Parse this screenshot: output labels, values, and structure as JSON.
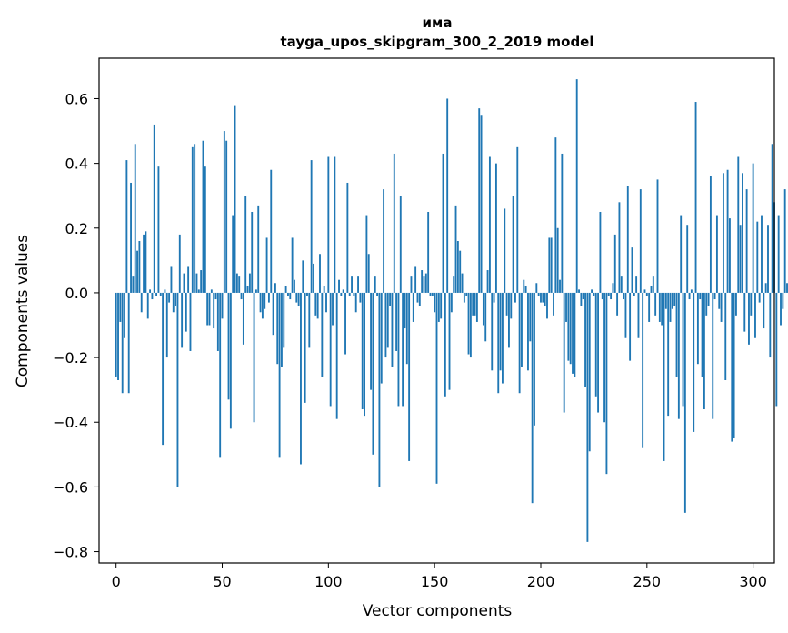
{
  "chart_data": {
    "type": "bar",
    "title_line1": "има",
    "title_line2": "tayga_upos_skipgram_300_2_2019 model",
    "xlabel": "Vector components",
    "ylabel": "Components values",
    "xlim": [
      -8,
      310
    ],
    "ylim": [
      -0.835,
      0.725
    ],
    "xticks": [
      0,
      50,
      100,
      150,
      200,
      250,
      300
    ],
    "xtick_labels": [
      "0",
      "50",
      "100",
      "150",
      "200",
      "250",
      "300"
    ],
    "yticks": [
      -0.8,
      -0.6,
      -0.4,
      -0.2,
      0.0,
      0.2,
      0.4,
      0.6
    ],
    "ytick_labels": [
      "−0.8",
      "−0.6",
      "−0.4",
      "−0.2",
      "0.0",
      "0.2",
      "0.4",
      "0.6"
    ],
    "bar_color": "#1f77b4",
    "values": [
      -0.26,
      -0.27,
      -0.09,
      -0.31,
      -0.14,
      0.41,
      -0.31,
      0.34,
      0.05,
      0.46,
      0.13,
      0.16,
      -0.06,
      0.18,
      0.19,
      -0.08,
      0.01,
      -0.02,
      0.52,
      -0.01,
      0.39,
      -0.01,
      -0.47,
      0.01,
      -0.2,
      -0.03,
      0.08,
      -0.06,
      -0.04,
      -0.6,
      0.18,
      -0.17,
      0.06,
      -0.12,
      0.08,
      -0.18,
      0.45,
      0.46,
      0.06,
      0.01,
      0.07,
      0.47,
      0.39,
      -0.1,
      -0.1,
      0.01,
      -0.11,
      -0.02,
      -0.18,
      -0.51,
      -0.08,
      0.5,
      0.47,
      -0.33,
      -0.42,
      0.24,
      0.58,
      0.06,
      0.05,
      -0.02,
      -0.16,
      0.3,
      0.02,
      0.06,
      0.25,
      -0.4,
      0.01,
      0.27,
      -0.06,
      -0.08,
      -0.05,
      0.17,
      -0.03,
      0.38,
      -0.13,
      0.03,
      -0.22,
      -0.51,
      -0.23,
      -0.17,
      0.02,
      -0.01,
      -0.02,
      0.17,
      0.04,
      -0.03,
      -0.04,
      -0.53,
      0.1,
      -0.34,
      -0.01,
      -0.17,
      0.41,
      0.09,
      -0.07,
      -0.08,
      0.12,
      -0.26,
      0.02,
      -0.06,
      0.42,
      -0.35,
      -0.1,
      0.42,
      -0.39,
      0.04,
      -0.01,
      0.01,
      -0.19,
      0.34,
      -0.01,
      0.05,
      -0.01,
      -0.06,
      0.05,
      -0.03,
      -0.36,
      -0.38,
      0.24,
      0.12,
      -0.3,
      -0.5,
      0.05,
      -0.01,
      -0.6,
      -0.28,
      0.32,
      -0.2,
      -0.17,
      -0.04,
      -0.23,
      0.43,
      -0.18,
      -0.35,
      0.3,
      -0.35,
      -0.11,
      -0.22,
      -0.52,
      0.05,
      -0.09,
      0.08,
      -0.03,
      -0.04,
      0.07,
      0.05,
      0.06,
      0.25,
      -0.01,
      -0.01,
      -0.06,
      -0.59,
      -0.09,
      -0.08,
      0.43,
      -0.32,
      0.6,
      -0.3,
      -0.06,
      0.05,
      0.27,
      0.16,
      0.13,
      0.06,
      -0.03,
      -0.01,
      -0.19,
      -0.2,
      -0.07,
      -0.07,
      -0.09,
      0.57,
      0.55,
      -0.1,
      -0.15,
      0.07,
      0.42,
      -0.24,
      -0.03,
      0.4,
      -0.31,
      -0.24,
      -0.28,
      0.26,
      -0.07,
      -0.17,
      -0.08,
      0.3,
      -0.03,
      0.45,
      -0.31,
      -0.23,
      0.04,
      0.02,
      -0.24,
      -0.15,
      -0.65,
      -0.41,
      0.03,
      -0.01,
      -0.03,
      -0.03,
      -0.04,
      -0.08,
      0.17,
      0.17,
      -0.07,
      0.48,
      0.2,
      0.04,
      0.43,
      -0.37,
      -0.09,
      -0.21,
      -0.22,
      -0.25,
      -0.26,
      0.66,
      0.01,
      -0.04,
      -0.02,
      -0.29,
      -0.77,
      -0.49,
      0.01,
      -0.01,
      -0.32,
      -0.37,
      0.25,
      -0.02,
      -0.4,
      -0.56,
      -0.01,
      -0.02,
      0.03,
      0.18,
      -0.07,
      0.28,
      0.05,
      -0.02,
      -0.14,
      0.33,
      -0.21,
      0.14,
      -0.01,
      0.05,
      -0.14,
      0.32,
      -0.48,
      0.01,
      -0.01,
      -0.09,
      0.02,
      0.05,
      -0.07,
      0.35,
      -0.09,
      -0.1,
      -0.52,
      -0.05,
      -0.38,
      -0.09,
      -0.05,
      -0.04,
      -0.26,
      -0.39,
      0.24,
      -0.35,
      -0.68,
      0.21,
      -0.02,
      0.01,
      -0.43,
      0.59,
      -0.22,
      -0.02,
      -0.26,
      -0.36,
      -0.07,
      -0.04,
      0.36,
      -0.39,
      -0.02,
      0.24,
      -0.05,
      -0.09,
      0.37,
      -0.27,
      0.38,
      0.23,
      -0.46,
      -0.45,
      -0.07,
      0.42,
      0.21,
      0.37,
      -0.12,
      0.32,
      -0.16,
      -0.07,
      0.4,
      -0.14,
      0.22,
      -0.03,
      0.24,
      -0.11,
      0.03,
      0.21,
      -0.2,
      0.46,
      0.28,
      -0.35,
      0.24,
      -0.1,
      -0.05,
      0.32,
      0.03
    ]
  }
}
